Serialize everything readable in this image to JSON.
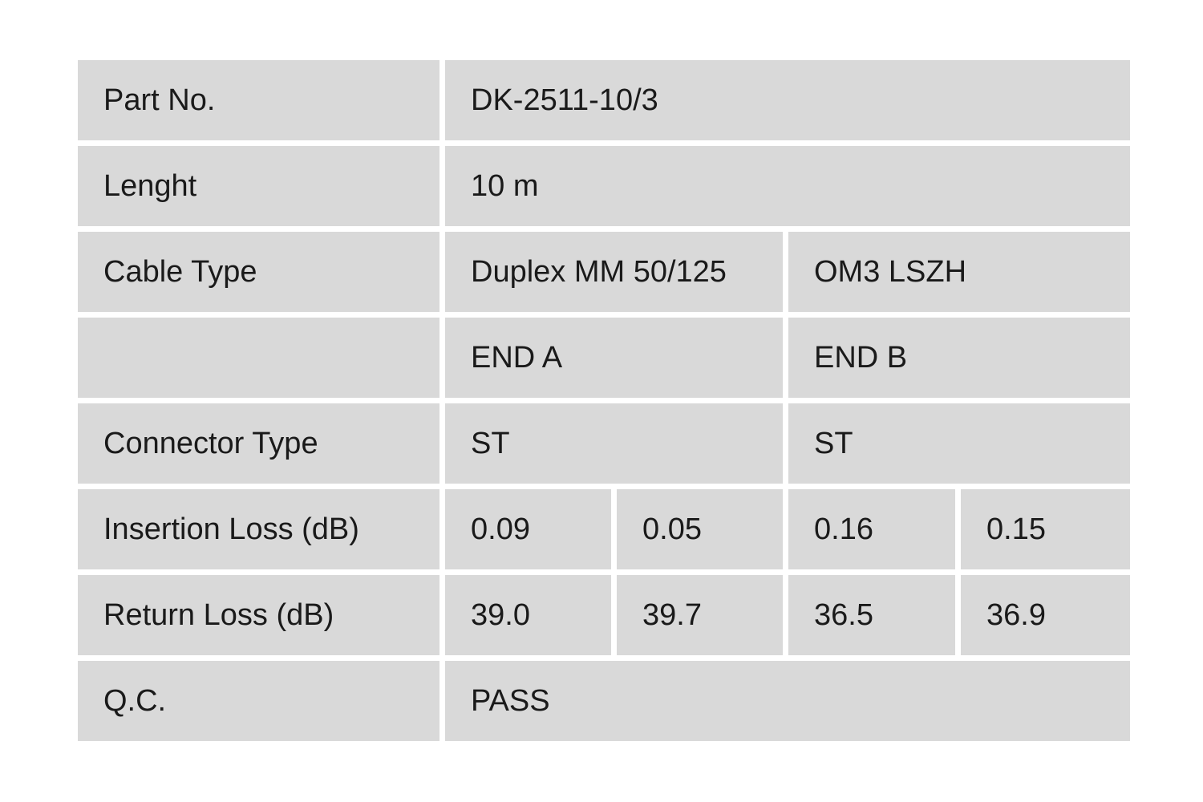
{
  "table": {
    "page_background": "#ffffff",
    "cell_color": "#d9d9d9",
    "text_color": "#1a1a1a",
    "rows": {
      "part_no": {
        "label": "Part No.",
        "value": "DK-2511-10/3"
      },
      "length": {
        "label": "Lenght",
        "value": "10 m"
      },
      "cable_type": {
        "label": "Cable Type",
        "value_a": "Duplex MM 50/125",
        "value_b": "OM3 LSZH"
      },
      "ends": {
        "label": "",
        "end_a": "END A",
        "end_b": "END B"
      },
      "connector_type": {
        "label": "Connector Type",
        "end_a": "ST",
        "end_b": "ST"
      },
      "insertion_loss": {
        "label": "Insertion Loss (dB)",
        "values": [
          "0.09",
          "0.05",
          "0.16",
          "0.15"
        ]
      },
      "return_loss": {
        "label": "Return Loss (dB)",
        "values": [
          "39.0",
          "39.7",
          "36.5",
          "36.9"
        ]
      },
      "qc": {
        "label": "Q.C.",
        "value": "PASS"
      }
    }
  }
}
